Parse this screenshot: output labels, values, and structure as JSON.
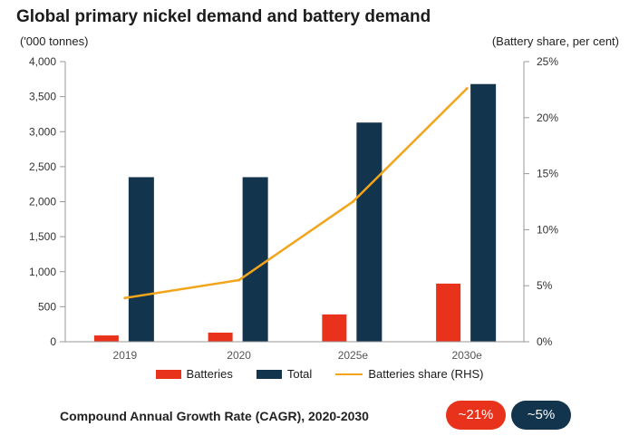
{
  "title": "Global primary nickel demand and battery demand",
  "unit_left": "('000 tonnes)",
  "unit_right": "(Battery share, per cent)",
  "colors": {
    "batteries": "#e8321c",
    "total": "#12344d",
    "share": "#f2a51a"
  },
  "chart_data": {
    "type": "bar",
    "categories": [
      "2019",
      "2020",
      "2025e",
      "2030e"
    ],
    "series": [
      {
        "name": "Batteries",
        "type": "bar",
        "axis": "left",
        "values": [
          90,
          130,
          390,
          830
        ]
      },
      {
        "name": "Total",
        "type": "bar",
        "axis": "left",
        "values": [
          2350,
          2350,
          3130,
          3680
        ]
      },
      {
        "name": "Batteries share (RHS)",
        "type": "line",
        "axis": "right",
        "values": [
          3.9,
          5.5,
          12.5,
          22.6
        ]
      }
    ],
    "ylim": [
      0,
      4000
    ],
    "yticks": [
      "0",
      "500",
      "1,000",
      "1,500",
      "2,000",
      "2,500",
      "3,000",
      "3,500",
      "4,000"
    ],
    "y2lim": [
      0,
      25
    ],
    "y2ticks": [
      "0%",
      "5%",
      "10%",
      "15%",
      "20%",
      "25%"
    ],
    "legend_position": "bottom"
  },
  "cagr": {
    "label": "Compound Annual Growth Rate (CAGR), 2020-2030",
    "batteries": "~21%",
    "total": "~5%"
  }
}
